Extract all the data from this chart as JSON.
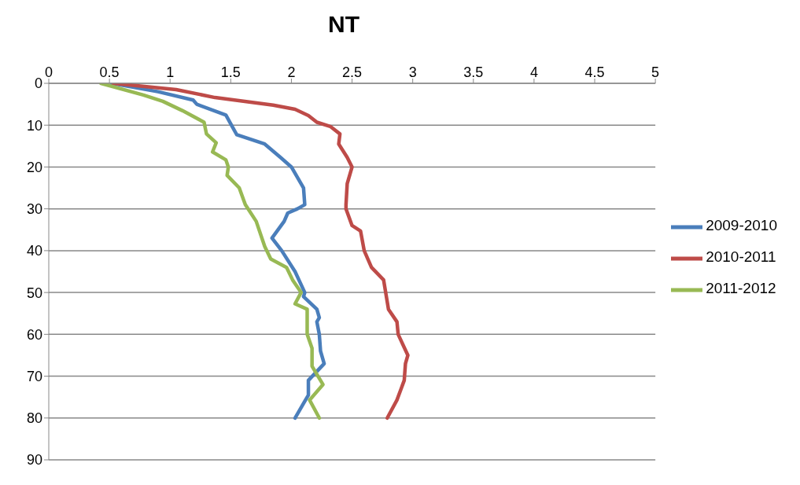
{
  "chart_data": {
    "type": "line",
    "title": "NT",
    "xlim": [
      0,
      5
    ],
    "xticks": [
      0,
      0.5,
      1,
      1.5,
      2,
      2.5,
      3,
      3.5,
      4,
      4.5,
      5
    ],
    "ylim": [
      90,
      0
    ],
    "yticks": [
      0,
      10,
      20,
      30,
      40,
      50,
      60,
      70,
      80,
      90
    ],
    "grid": "y",
    "legend": "right",
    "marker": "none",
    "line_style": "solid",
    "series": [
      {
        "name": "2009-2010",
        "color": "#4a7ebb",
        "x": [
          0.52,
          0.9,
          1.19,
          1.22,
          1.46,
          1.51,
          1.55,
          1.78,
          1.91,
          2.0,
          2.1,
          2.11,
          2.05,
          1.97,
          1.94,
          1.84,
          1.92,
          2.03,
          2.11,
          2.1,
          2.21,
          2.23,
          2.21,
          2.23,
          2.24,
          2.27,
          2.14,
          2.14,
          2.03
        ],
        "values": [
          0,
          2,
          4,
          5,
          7.6,
          10.2,
          12.3,
          14.5,
          17.7,
          20,
          25,
          29,
          30,
          31,
          33,
          37,
          40,
          45,
          50,
          51,
          54,
          56,
          57,
          60,
          64,
          67,
          71,
          74.5,
          80
        ]
      },
      {
        "name": "2010-2011",
        "color": "#be4b48",
        "x": [
          0.53,
          1.05,
          1.37,
          1.85,
          2.03,
          2.14,
          2.21,
          2.32,
          2.4,
          2.39,
          2.46,
          2.5,
          2.46,
          2.45,
          2.45,
          2.5,
          2.57,
          2.6,
          2.66,
          2.76,
          2.8,
          2.87,
          2.88,
          2.96,
          2.94,
          2.93,
          2.87,
          2.79
        ],
        "values": [
          0,
          1.5,
          3.4,
          5.2,
          6.2,
          7.7,
          9.3,
          10.3,
          12.1,
          14.5,
          17.7,
          20,
          24,
          29,
          30,
          34,
          35.3,
          40,
          44,
          47,
          54,
          57,
          60,
          65,
          67,
          71,
          75.7,
          80
        ]
      },
      {
        "name": "2011-2012",
        "color": "#98b954",
        "x": [
          0.43,
          0.78,
          0.94,
          1.1,
          1.28,
          1.3,
          1.38,
          1.35,
          1.46,
          1.48,
          1.47,
          1.57,
          1.62,
          1.71,
          1.78,
          1.83,
          1.96,
          2.01,
          2.08,
          2.03,
          2.13,
          2.13,
          2.17,
          2.17,
          2.26,
          2.15,
          2.23
        ],
        "values": [
          0,
          2.8,
          4.3,
          6.5,
          9.3,
          12.1,
          14.2,
          16.4,
          18.3,
          20,
          22,
          25,
          29,
          33,
          39,
          42,
          44,
          47,
          50,
          52.7,
          54,
          60,
          63.3,
          67.6,
          72,
          75.7,
          80
        ]
      }
    ]
  }
}
